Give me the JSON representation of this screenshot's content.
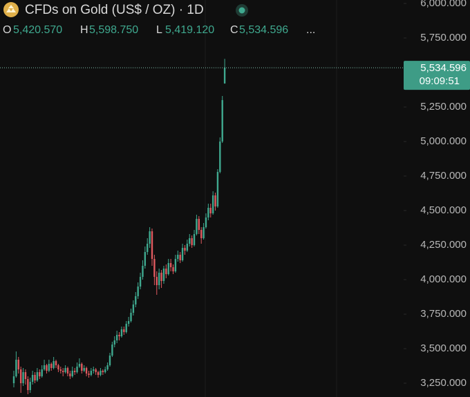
{
  "chart_data": {
    "type": "candlestick",
    "title": "CFDs on Gold (US$ / OZ) · 1D",
    "legend_values": [
      {
        "key": "O",
        "value": "5,420.570"
      },
      {
        "key": "H",
        "value": "5,598.750"
      },
      {
        "key": "L",
        "value": "5,419.120"
      },
      {
        "key": "C",
        "value": "5,534.596"
      }
    ],
    "more": "...",
    "countdown": "09:09:51",
    "up_color": "#3fa98f",
    "down_color": "#e05a5f",
    "open": [
      3250,
      3300,
      3420,
      3350,
      3250,
      3330,
      3280,
      3200,
      3260,
      3310,
      3270,
      3330,
      3300,
      3350,
      3380,
      3340,
      3390,
      3360,
      3410,
      3380,
      3350,
      3340,
      3330,
      3360,
      3320,
      3300,
      3340,
      3330,
      3370,
      3390,
      3340,
      3360,
      3320,
      3310,
      3340,
      3350,
      3330,
      3310,
      3340,
      3330,
      3350,
      3380,
      3450,
      3530,
      3560,
      3600,
      3590,
      3640,
      3620,
      3680,
      3700,
      3760,
      3820,
      3880,
      3950,
      4020,
      4100,
      4200,
      4260,
      4350,
      4150,
      4020,
      3960,
      4050,
      3990,
      4080,
      4040,
      4120,
      4090,
      4060,
      4150,
      4180,
      4140,
      4230,
      4210,
      4260,
      4300,
      4250,
      4330,
      4440,
      4360,
      4300,
      4380,
      4450,
      4520,
      4480,
      4610,
      4530,
      4780,
      5000,
      5420.57
    ],
    "high": [
      3340,
      3480,
      3440,
      3370,
      3360,
      3350,
      3300,
      3290,
      3340,
      3330,
      3360,
      3350,
      3380,
      3420,
      3390,
      3420,
      3400,
      3440,
      3420,
      3390,
      3370,
      3360,
      3380,
      3370,
      3340,
      3370,
      3360,
      3400,
      3430,
      3400,
      3380,
      3370,
      3340,
      3360,
      3370,
      3360,
      3340,
      3360,
      3350,
      3370,
      3400,
      3470,
      3550,
      3590,
      3630,
      3620,
      3660,
      3660,
      3700,
      3730,
      3790,
      3850,
      3910,
      3980,
      4050,
      4140,
      4240,
      4300,
      4380,
      4370,
      4180,
      4060,
      4080,
      4070,
      4100,
      4110,
      4150,
      4150,
      4110,
      4180,
      4210,
      4200,
      4260,
      4250,
      4290,
      4330,
      4320,
      4360,
      4470,
      4460,
      4380,
      4410,
      4480,
      4550,
      4550,
      4640,
      4630,
      4800,
      5030,
      5330,
      5598.75
    ],
    "low": [
      3220,
      3290,
      3320,
      3180,
      3230,
      3240,
      3170,
      3180,
      3240,
      3250,
      3260,
      3280,
      3290,
      3340,
      3320,
      3330,
      3340,
      3350,
      3360,
      3330,
      3320,
      3300,
      3320,
      3300,
      3280,
      3290,
      3310,
      3320,
      3360,
      3320,
      3330,
      3300,
      3290,
      3300,
      3320,
      3310,
      3290,
      3300,
      3310,
      3320,
      3340,
      3370,
      3440,
      3510,
      3540,
      3560,
      3580,
      3600,
      3610,
      3660,
      3690,
      3740,
      3800,
      3860,
      3930,
      4000,
      4080,
      4180,
      4230,
      4100,
      3960,
      3890,
      3930,
      3940,
      3970,
      4010,
      4030,
      4060,
      4040,
      4050,
      4130,
      4120,
      4130,
      4180,
      4200,
      4240,
      4230,
      4240,
      4320,
      4330,
      4260,
      4290,
      4370,
      4430,
      4450,
      4470,
      4500,
      4520,
      4770,
      4990,
      5419.12
    ],
    "close": [
      3300,
      3420,
      3350,
      3250,
      3330,
      3280,
      3200,
      3260,
      3310,
      3270,
      3330,
      3300,
      3350,
      3380,
      3340,
      3390,
      3360,
      3410,
      3380,
      3350,
      3340,
      3330,
      3360,
      3320,
      3300,
      3340,
      3330,
      3370,
      3390,
      3340,
      3360,
      3320,
      3310,
      3340,
      3350,
      3330,
      3310,
      3340,
      3330,
      3350,
      3380,
      3450,
      3530,
      3560,
      3600,
      3590,
      3640,
      3620,
      3680,
      3700,
      3760,
      3820,
      3880,
      3950,
      4020,
      4100,
      4200,
      4260,
      4350,
      4150,
      4020,
      3960,
      4050,
      3990,
      4080,
      4040,
      4120,
      4090,
      4060,
      4150,
      4180,
      4140,
      4230,
      4210,
      4260,
      4300,
      4250,
      4330,
      4440,
      4360,
      4300,
      4380,
      4450,
      4520,
      4480,
      4610,
      4530,
      4780,
      5000,
      5300,
      5534.596
    ],
    "ylim": [
      3150,
      6025
    ],
    "yticks": [
      {
        "value": 6000,
        "label": "6,000.000"
      },
      {
        "value": 5750,
        "label": "5,750.000"
      },
      {
        "value": 5250,
        "label": "5,250.000"
      },
      {
        "value": 5000,
        "label": "5,000.000"
      },
      {
        "value": 4750,
        "label": "4,750.000"
      },
      {
        "value": 4500,
        "label": "4,500.000"
      },
      {
        "value": 4250,
        "label": "4,250.000"
      },
      {
        "value": 4000,
        "label": "4,000.000"
      },
      {
        "value": 3750,
        "label": "3,750.000"
      },
      {
        "value": 3500,
        "label": "3,500.000"
      },
      {
        "value": 3250,
        "label": "3,250.000"
      }
    ]
  }
}
